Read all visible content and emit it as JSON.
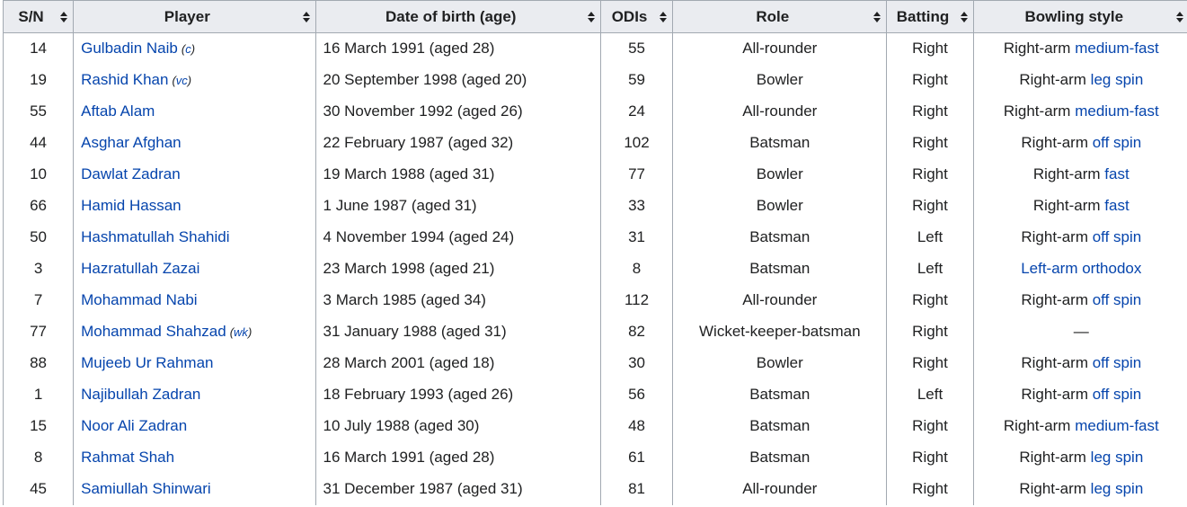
{
  "columns": [
    {
      "key": "sn",
      "label": "S/N"
    },
    {
      "key": "player",
      "label": "Player"
    },
    {
      "key": "dob",
      "label": "Date of birth (age)"
    },
    {
      "key": "odis",
      "label": "ODIs"
    },
    {
      "key": "role",
      "label": "Role"
    },
    {
      "key": "batting",
      "label": "Batting"
    },
    {
      "key": "bowling",
      "label": "Bowling style"
    }
  ],
  "rows": [
    {
      "sn": "14",
      "player": "Gulbadin Naib",
      "tag": "c",
      "dob": "16 March 1991 (aged 28)",
      "odis": "55",
      "role": "All-rounder",
      "batting": "Right",
      "bowl_prefix": "Right-arm ",
      "bowl_link": "medium-fast"
    },
    {
      "sn": "19",
      "player": "Rashid Khan",
      "tag": "vc",
      "dob": "20 September 1998 (aged 20)",
      "odis": "59",
      "role": "Bowler",
      "batting": "Right",
      "bowl_prefix": "Right-arm ",
      "bowl_link": "leg spin"
    },
    {
      "sn": "55",
      "player": "Aftab Alam",
      "tag": "",
      "dob": "30 November 1992 (aged 26)",
      "odis": "24",
      "role": "All-rounder",
      "batting": "Right",
      "bowl_prefix": "Right-arm ",
      "bowl_link": "medium-fast"
    },
    {
      "sn": "44",
      "player": "Asghar Afghan",
      "tag": "",
      "dob": "22 February 1987 (aged 32)",
      "odis": "102",
      "role": "Batsman",
      "batting": "Right",
      "bowl_prefix": "Right-arm ",
      "bowl_link": "off spin"
    },
    {
      "sn": "10",
      "player": "Dawlat Zadran",
      "tag": "",
      "dob": "19 March 1988 (aged 31)",
      "odis": "77",
      "role": "Bowler",
      "batting": "Right",
      "bowl_prefix": "Right-arm ",
      "bowl_link": "fast"
    },
    {
      "sn": "66",
      "player": "Hamid Hassan",
      "tag": "",
      "dob": "1 June 1987 (aged 31)",
      "odis": "33",
      "role": "Bowler",
      "batting": "Right",
      "bowl_prefix": "Right-arm ",
      "bowl_link": "fast"
    },
    {
      "sn": "50",
      "player": "Hashmatullah Shahidi",
      "tag": "",
      "dob": "4 November 1994 (aged 24)",
      "odis": "31",
      "role": "Batsman",
      "batting": "Left",
      "bowl_prefix": "Right-arm ",
      "bowl_link": "off spin"
    },
    {
      "sn": "3",
      "player": "Hazratullah Zazai",
      "tag": "",
      "dob": "23 March 1998 (aged 21)",
      "odis": "8",
      "role": "Batsman",
      "batting": "Left",
      "bowl_prefix": "",
      "bowl_link": "Left-arm orthodox"
    },
    {
      "sn": "7",
      "player": "Mohammad Nabi",
      "tag": "",
      "dob": "3 March 1985 (aged 34)",
      "odis": "112",
      "role": "All-rounder",
      "batting": "Right",
      "bowl_prefix": "Right-arm ",
      "bowl_link": "off spin"
    },
    {
      "sn": "77",
      "player": "Mohammad Shahzad",
      "tag": "wk",
      "dob": "31 January 1988 (aged 31)",
      "odis": "82",
      "role": "Wicket-keeper-batsman",
      "batting": "Right",
      "bowl_prefix": "—",
      "bowl_link": ""
    },
    {
      "sn": "88",
      "player": "Mujeeb Ur Rahman",
      "tag": "",
      "dob": "28 March 2001 (aged 18)",
      "odis": "30",
      "role": "Bowler",
      "batting": "Right",
      "bowl_prefix": "Right-arm ",
      "bowl_link": "off spin"
    },
    {
      "sn": "1",
      "player": "Najibullah Zadran",
      "tag": "",
      "dob": "18 February 1993 (aged 26)",
      "odis": "56",
      "role": "Batsman",
      "batting": "Left",
      "bowl_prefix": "Right-arm ",
      "bowl_link": "off spin"
    },
    {
      "sn": "15",
      "player": "Noor Ali Zadran",
      "tag": "",
      "dob": "10 July 1988 (aged 30)",
      "odis": "48",
      "role": "Batsman",
      "batting": "Right",
      "bowl_prefix": "Right-arm ",
      "bowl_link": "medium-fast"
    },
    {
      "sn": "8",
      "player": "Rahmat Shah",
      "tag": "",
      "dob": "16 March 1991 (aged 28)",
      "odis": "61",
      "role": "Batsman",
      "batting": "Right",
      "bowl_prefix": "Right-arm ",
      "bowl_link": "leg spin"
    },
    {
      "sn": "45",
      "player": "Samiullah Shinwari",
      "tag": "",
      "dob": "31 December 1987 (aged 31)",
      "odis": "81",
      "role": "All-rounder",
      "batting": "Right",
      "bowl_prefix": "Right-arm ",
      "bowl_link": "leg spin"
    }
  ],
  "colors": {
    "link": "#0645ad",
    "header_bg": "#eaecf0",
    "border": "#a2a9b1",
    "text": "#202122"
  },
  "icons": {
    "sort": "sort-icon"
  }
}
